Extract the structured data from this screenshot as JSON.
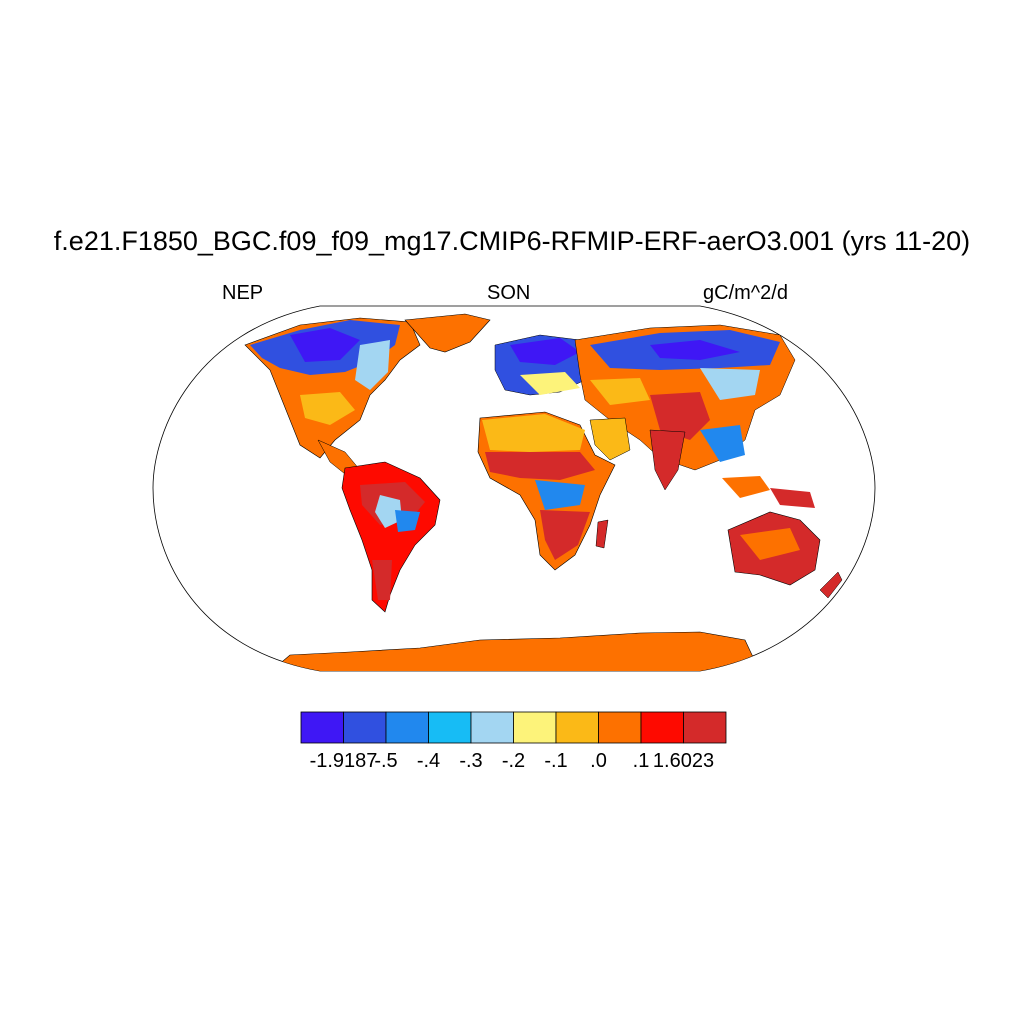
{
  "title": "f.e21.F1850_BGC.f09_f09_mg17.CMIP6-RFMIP-ERF-aerO3.001 (yrs 11-20)",
  "left_label": "NEP",
  "center_label": "SON",
  "right_label": "gC/m^2/d",
  "colorbar": {
    "colors": [
      "#3f17f5",
      "#3050e0",
      "#2188ee",
      "#17bcf5",
      "#a3d6f2",
      "#fdf37a",
      "#fbb917",
      "#fd7100",
      "#fe0a00",
      "#d42a2a"
    ],
    "labels": [
      "-1.9187",
      "-.5",
      "-.4",
      "-.3",
      "-.2",
      "-.1",
      ".0",
      ".1",
      "1.6023"
    ]
  },
  "map_colors": {
    "ocean": "#ffffff",
    "outline": "#000000"
  }
}
